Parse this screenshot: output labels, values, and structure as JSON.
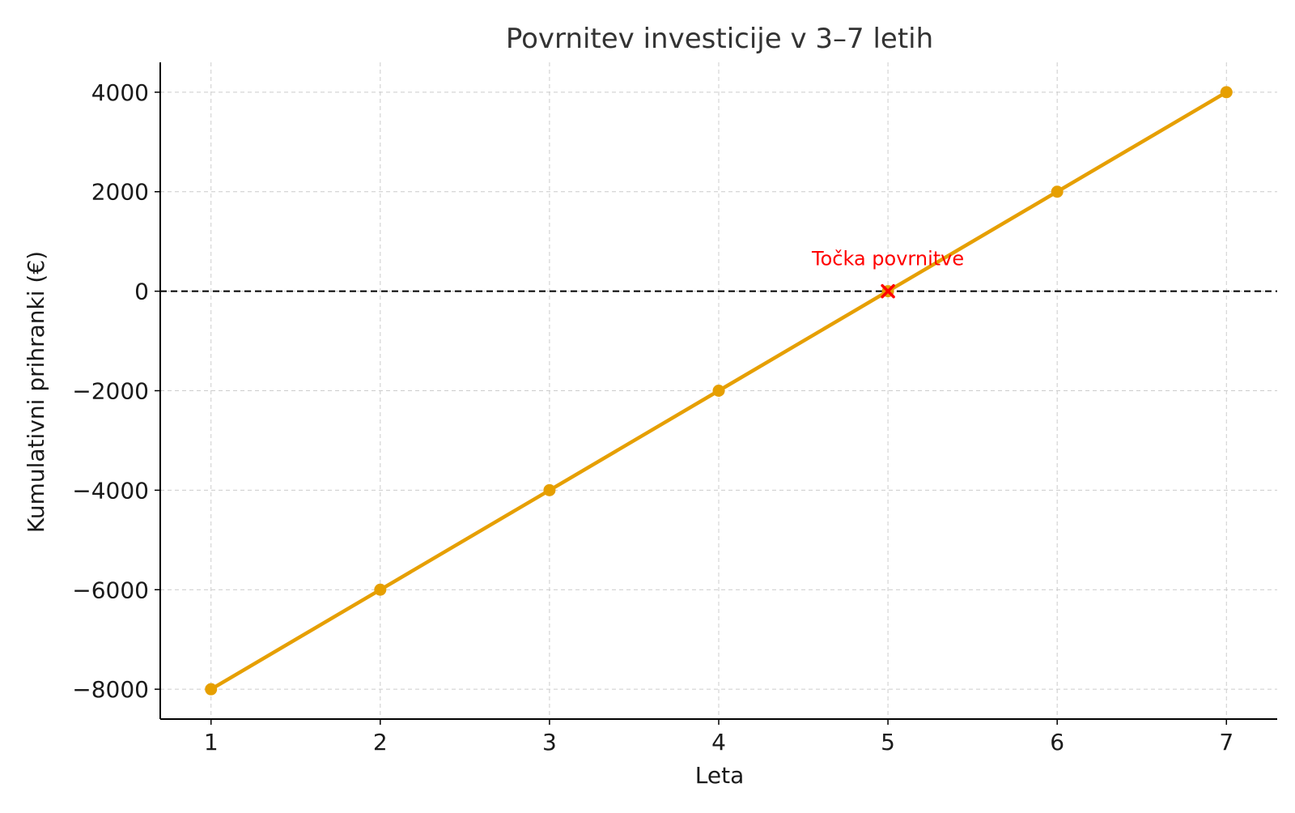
{
  "chart_data": {
    "type": "line",
    "title": "Povrnitev investicije v 3–7 letih",
    "xlabel": "Leta",
    "ylabel": "Kumulativni prihranki (€)",
    "x": [
      1,
      2,
      3,
      4,
      5,
      6,
      7
    ],
    "x_tick_labels": [
      "1",
      "2",
      "3",
      "4",
      "5",
      "6",
      "7"
    ],
    "xlim": [
      0.7,
      7.3
    ],
    "ylim": [
      -8600,
      4600
    ],
    "y_ticks": [
      4000,
      2000,
      0,
      -2000,
      -4000,
      -6000,
      -8000
    ],
    "y_tick_labels": [
      "4000",
      "2000",
      "0",
      "−2000",
      "−4000",
      "−6000",
      "−8000"
    ],
    "series": [
      {
        "values": [
          -8000,
          -6000,
          -4000,
          -2000,
          0,
          2000,
          4000
        ],
        "color": "#e69f00",
        "marker": "circle"
      }
    ],
    "reference_line": {
      "y": 0,
      "style": "dashed",
      "color": "#000000"
    },
    "annotation": {
      "text": "Točka povrnitve",
      "x": 5,
      "y": 0,
      "marker": "x",
      "color": "#ff0000"
    },
    "grid": true,
    "legend": "none"
  }
}
